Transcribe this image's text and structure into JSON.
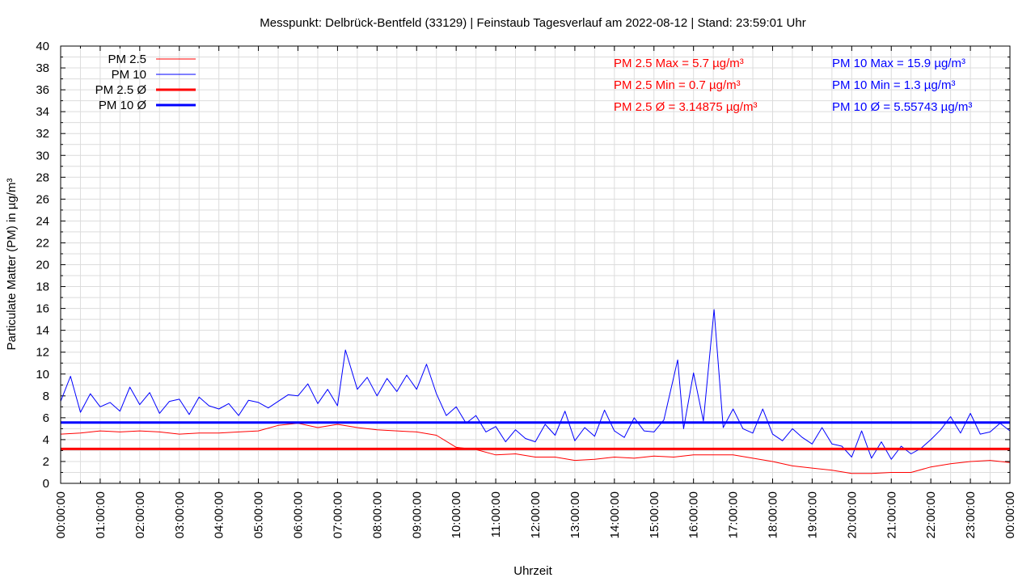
{
  "chart_data": {
    "type": "line",
    "title": "Messpunkt: Delbrück-Bentfeld (33129) | Feinstaub Tagesverlauf am 2022-08-12 | Stand: 23:59:01 Uhr",
    "xlabel": "Uhrzeit",
    "ylabel": "Particulate Matter (PM) in µg/m³",
    "ylim": [
      0,
      40
    ],
    "xlim": [
      0,
      24
    ],
    "grid": true,
    "legend_position": "top-left",
    "y_ticks": [
      "0",
      "2",
      "4",
      "6",
      "8",
      "10",
      "12",
      "14",
      "16",
      "18",
      "20",
      "22",
      "24",
      "26",
      "28",
      "30",
      "32",
      "34",
      "36",
      "38",
      "40"
    ],
    "x_ticks": [
      "00:00:00",
      "01:00:00",
      "02:00:00",
      "03:00:00",
      "04:00:00",
      "05:00:00",
      "06:00:00",
      "07:00:00",
      "08:00:00",
      "09:00:00",
      "10:00:00",
      "11:00:00",
      "12:00:00",
      "13:00:00",
      "14:00:00",
      "15:00:00",
      "16:00:00",
      "17:00:00",
      "18:00:00",
      "19:00:00",
      "20:00:00",
      "21:00:00",
      "22:00:00",
      "23:00:00",
      "00:00:00"
    ],
    "series": [
      {
        "name": "PM 2.5",
        "color": "#ff0000",
        "style": "thin",
        "x": [
          0,
          0.5,
          1,
          1.5,
          2,
          2.5,
          3,
          3.5,
          4,
          4.5,
          5,
          5.5,
          6,
          6.5,
          7,
          7.5,
          8,
          8.5,
          9,
          9.5,
          10,
          10.5,
          11,
          11.5,
          12,
          12.5,
          13,
          13.5,
          14,
          14.5,
          15,
          15.5,
          16,
          16.5,
          17,
          17.5,
          18,
          18.5,
          19,
          19.5,
          20,
          20.5,
          21,
          21.5,
          22,
          22.5,
          23,
          23.5,
          24
        ],
        "values": [
          4.5,
          4.6,
          4.8,
          4.7,
          4.8,
          4.7,
          4.5,
          4.6,
          4.6,
          4.7,
          4.8,
          5.3,
          5.5,
          5.1,
          5.4,
          5.1,
          4.9,
          4.8,
          4.7,
          4.4,
          3.3,
          3.1,
          2.6,
          2.7,
          2.4,
          2.4,
          2.1,
          2.2,
          2.4,
          2.3,
          2.5,
          2.4,
          2.6,
          2.6,
          2.6,
          2.3,
          2.0,
          1.6,
          1.4,
          1.2,
          0.9,
          0.9,
          1.0,
          1.0,
          1.5,
          1.8,
          2.0,
          2.1,
          1.9
        ]
      },
      {
        "name": "PM 10",
        "color": "#0000ff",
        "style": "thin",
        "x": [
          0,
          0.25,
          0.5,
          0.75,
          1,
          1.25,
          1.5,
          1.75,
          2,
          2.25,
          2.5,
          2.75,
          3,
          3.25,
          3.5,
          3.75,
          4,
          4.25,
          4.5,
          4.75,
          5,
          5.25,
          5.5,
          5.75,
          6,
          6.25,
          6.5,
          6.75,
          7,
          7.2,
          7.5,
          7.75,
          8,
          8.25,
          8.5,
          8.75,
          9,
          9.25,
          9.5,
          9.75,
          10,
          10.25,
          10.5,
          10.75,
          11,
          11.25,
          11.5,
          11.75,
          12,
          12.25,
          12.5,
          12.75,
          13,
          13.25,
          13.5,
          13.75,
          14,
          14.25,
          14.5,
          14.75,
          15,
          15.25,
          15.6,
          15.75,
          16,
          16.25,
          16.52,
          16.75,
          17,
          17.25,
          17.5,
          17.75,
          18,
          18.25,
          18.5,
          18.75,
          19,
          19.25,
          19.5,
          19.75,
          20,
          20.25,
          20.5,
          20.75,
          21,
          21.25,
          21.5,
          21.75,
          22,
          22.25,
          22.5,
          22.75,
          23,
          23.25,
          23.5,
          23.75,
          24
        ],
        "values": [
          7.5,
          9.8,
          6.5,
          8.2,
          7.0,
          7.4,
          6.6,
          8.8,
          7.2,
          8.3,
          6.4,
          7.5,
          7.7,
          6.3,
          7.9,
          7.1,
          6.8,
          7.3,
          6.2,
          7.6,
          7.4,
          6.9,
          7.5,
          8.1,
          8.0,
          9.1,
          7.3,
          8.6,
          7.1,
          12.2,
          8.6,
          9.7,
          8.0,
          9.6,
          8.4,
          9.9,
          8.6,
          10.9,
          8.2,
          6.2,
          7.0,
          5.5,
          6.2,
          4.7,
          5.2,
          3.8,
          4.9,
          4.1,
          3.8,
          5.4,
          4.4,
          6.6,
          3.9,
          5.1,
          4.3,
          6.7,
          4.8,
          4.2,
          6.0,
          4.8,
          4.7,
          5.8,
          11.3,
          5.0,
          10.1,
          5.7,
          15.9,
          5.1,
          6.8,
          5.0,
          4.6,
          6.8,
          4.5,
          3.9,
          5.0,
          4.2,
          3.6,
          5.1,
          3.6,
          3.4,
          2.4,
          4.8,
          2.3,
          3.8,
          2.2,
          3.4,
          2.7,
          3.2,
          4.0,
          4.9,
          6.1,
          4.6,
          6.4,
          4.5,
          4.7,
          5.5,
          4.8
        ]
      },
      {
        "name": "PM 2.5 Ø",
        "color": "#ff0000",
        "style": "thick",
        "x": [
          0,
          24
        ],
        "values": [
          3.14875,
          3.14875
        ]
      },
      {
        "name": "PM 10 Ø",
        "color": "#0000ff",
        "style": "thick",
        "x": [
          0,
          24
        ],
        "values": [
          5.55743,
          5.55743
        ]
      }
    ],
    "annotations": [
      {
        "text": "PM 2.5 Max = 5.7 µg/m³",
        "color": "#ff0000"
      },
      {
        "text": "PM 2.5 Min = 0.7 µg/m³",
        "color": "#ff0000"
      },
      {
        "text": "PM 2.5 Ø = 3.14875 µg/m³",
        "color": "#ff0000"
      },
      {
        "text": "PM 10 Max = 15.9 µg/m³",
        "color": "#0000ff"
      },
      {
        "text": "PM 10 Min = 1.3 µg/m³",
        "color": "#0000ff"
      },
      {
        "text": "PM 10 Ø = 5.55743 µg/m³",
        "color": "#0000ff"
      }
    ]
  }
}
